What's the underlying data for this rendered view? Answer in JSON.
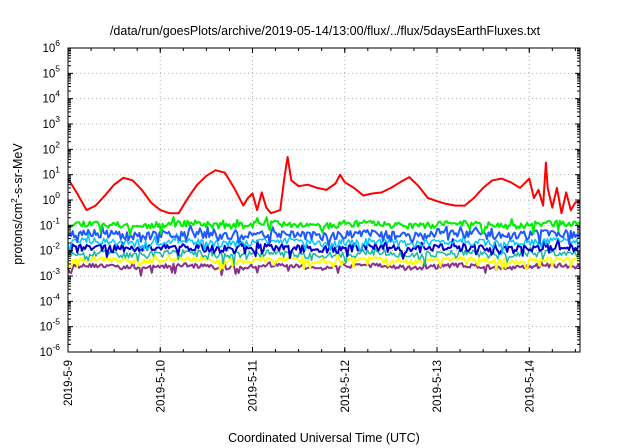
{
  "chart_data": {
    "type": "line",
    "title": "/data/run/goesPlots/archive/2019-05-14/13:00/flux/../flux/5daysEarthFluxes.txt",
    "xlabel": "Coordinated Universal Time (UTC)",
    "ylabel": "protons/cm²-s-sr-MeV",
    "ylabel_parts": {
      "pre": "protons/cm",
      "sup": "2",
      "post": "-s-sr-MeV"
    },
    "yscale": "log",
    "xlim": [
      0,
      5.55
    ],
    "ylim_exp": [
      -6,
      6
    ],
    "yticks": [
      {
        "base": "10",
        "exp": "6",
        "e": 6
      },
      {
        "base": "10",
        "exp": "5",
        "e": 5
      },
      {
        "base": "10",
        "exp": "4",
        "e": 4
      },
      {
        "base": "10",
        "exp": "3",
        "e": 3
      },
      {
        "base": "10",
        "exp": "2",
        "e": 2
      },
      {
        "base": "10",
        "exp": "1",
        "e": 1
      },
      {
        "base": "10",
        "exp": "0",
        "e": 0
      },
      {
        "base": "10",
        "exp": "-1",
        "e": -1
      },
      {
        "base": "10",
        "exp": "-2",
        "e": -2
      },
      {
        "base": "10",
        "exp": "-3",
        "e": -3
      },
      {
        "base": "10",
        "exp": "-4",
        "e": -4
      },
      {
        "base": "10",
        "exp": "-5",
        "e": -5
      },
      {
        "base": "10",
        "exp": "-6",
        "e": -6
      }
    ],
    "xticks": [
      {
        "label": "2019-5-9",
        "day": 0
      },
      {
        "label": "2019-5-10",
        "day": 1
      },
      {
        "label": "2019-5-11",
        "day": 2
      },
      {
        "label": "2019-5-12",
        "day": 3
      },
      {
        "label": "2019-5-13",
        "day": 4
      },
      {
        "label": "2019-5-14",
        "day": 5
      }
    ],
    "grid": true,
    "series": [
      {
        "color": "#ff0000",
        "width": 2,
        "x": [
          0,
          0.1,
          0.2,
          0.3,
          0.4,
          0.5,
          0.6,
          0.7,
          0.8,
          0.9,
          1.0,
          1.1,
          1.2,
          1.3,
          1.4,
          1.5,
          1.6,
          1.7,
          1.8,
          1.9,
          1.95,
          2.0,
          2.05,
          2.1,
          2.15,
          2.2,
          2.3,
          2.35,
          2.38,
          2.42,
          2.5,
          2.6,
          2.7,
          2.8,
          2.9,
          2.95,
          3.0,
          3.1,
          3.2,
          3.3,
          3.4,
          3.5,
          3.6,
          3.7,
          3.8,
          3.9,
          4.0,
          4.1,
          4.2,
          4.3,
          4.4,
          4.5,
          4.6,
          4.7,
          4.8,
          4.9,
          5.0,
          5.05,
          5.1,
          5.15,
          5.18,
          5.2,
          5.25,
          5.3,
          5.35,
          5.4,
          5.45,
          5.5,
          5.55
        ],
        "y": [
          7,
          1.8,
          0.4,
          0.6,
          1.5,
          4,
          7.5,
          6,
          2.5,
          0.8,
          0.4,
          0.3,
          0.3,
          1.2,
          4,
          9,
          15,
          12,
          3,
          0.6,
          1.2,
          1.8,
          0.4,
          2,
          0.5,
          0.3,
          0.4,
          10,
          50,
          6,
          3.5,
          4,
          3,
          2.5,
          4.5,
          10,
          5,
          3,
          1.5,
          1.8,
          2,
          3,
          5,
          8,
          3.5,
          1.2,
          0.9,
          0.7,
          0.6,
          0.6,
          1.2,
          3,
          6,
          7,
          5,
          3,
          7,
          1.2,
          2.5,
          0.6,
          30,
          3,
          0.5,
          3,
          0.3,
          2,
          0.4,
          0.8,
          0.9
        ]
      },
      {
        "color": "#00ee00",
        "width": 2,
        "base": 0.11,
        "amp": 0.28,
        "seed": 11,
        "x": [
          0,
          5.55
        ],
        "y": [
          0.11,
          0.11
        ]
      },
      {
        "color": "#1e5aff",
        "width": 2,
        "base": 0.045,
        "amp": 0.35,
        "seed": 23,
        "x": [
          0,
          5.55
        ],
        "y": [
          0.045,
          0.045
        ]
      },
      {
        "color": "#00c8ff",
        "width": 1.5,
        "base": 0.022,
        "amp": 0.32,
        "seed": 37,
        "x": [
          0,
          5.55
        ],
        "y": [
          0.022,
          0.022
        ]
      },
      {
        "color": "#0000cc",
        "width": 2,
        "base": 0.013,
        "amp": 0.35,
        "seed": 41,
        "x": [
          0,
          5.55
        ],
        "y": [
          0.013,
          0.013
        ]
      },
      {
        "color": "#18b7a7",
        "width": 1.5,
        "base": 0.0075,
        "amp": 0.3,
        "seed": 53,
        "x": [
          0,
          5.55
        ],
        "y": [
          0.0075,
          0.0075
        ]
      },
      {
        "color": "#ffff00",
        "width": 2,
        "base": 0.0042,
        "amp": 0.2,
        "seed": 67,
        "x": [
          0,
          5.55
        ],
        "y": [
          0.0042,
          0.0042
        ]
      },
      {
        "color": "#883388",
        "width": 2,
        "base": 0.0024,
        "amp": 0.2,
        "seed": 79,
        "x": [
          0,
          5.55
        ],
        "y": [
          0.0024,
          0.0024
        ]
      }
    ]
  }
}
